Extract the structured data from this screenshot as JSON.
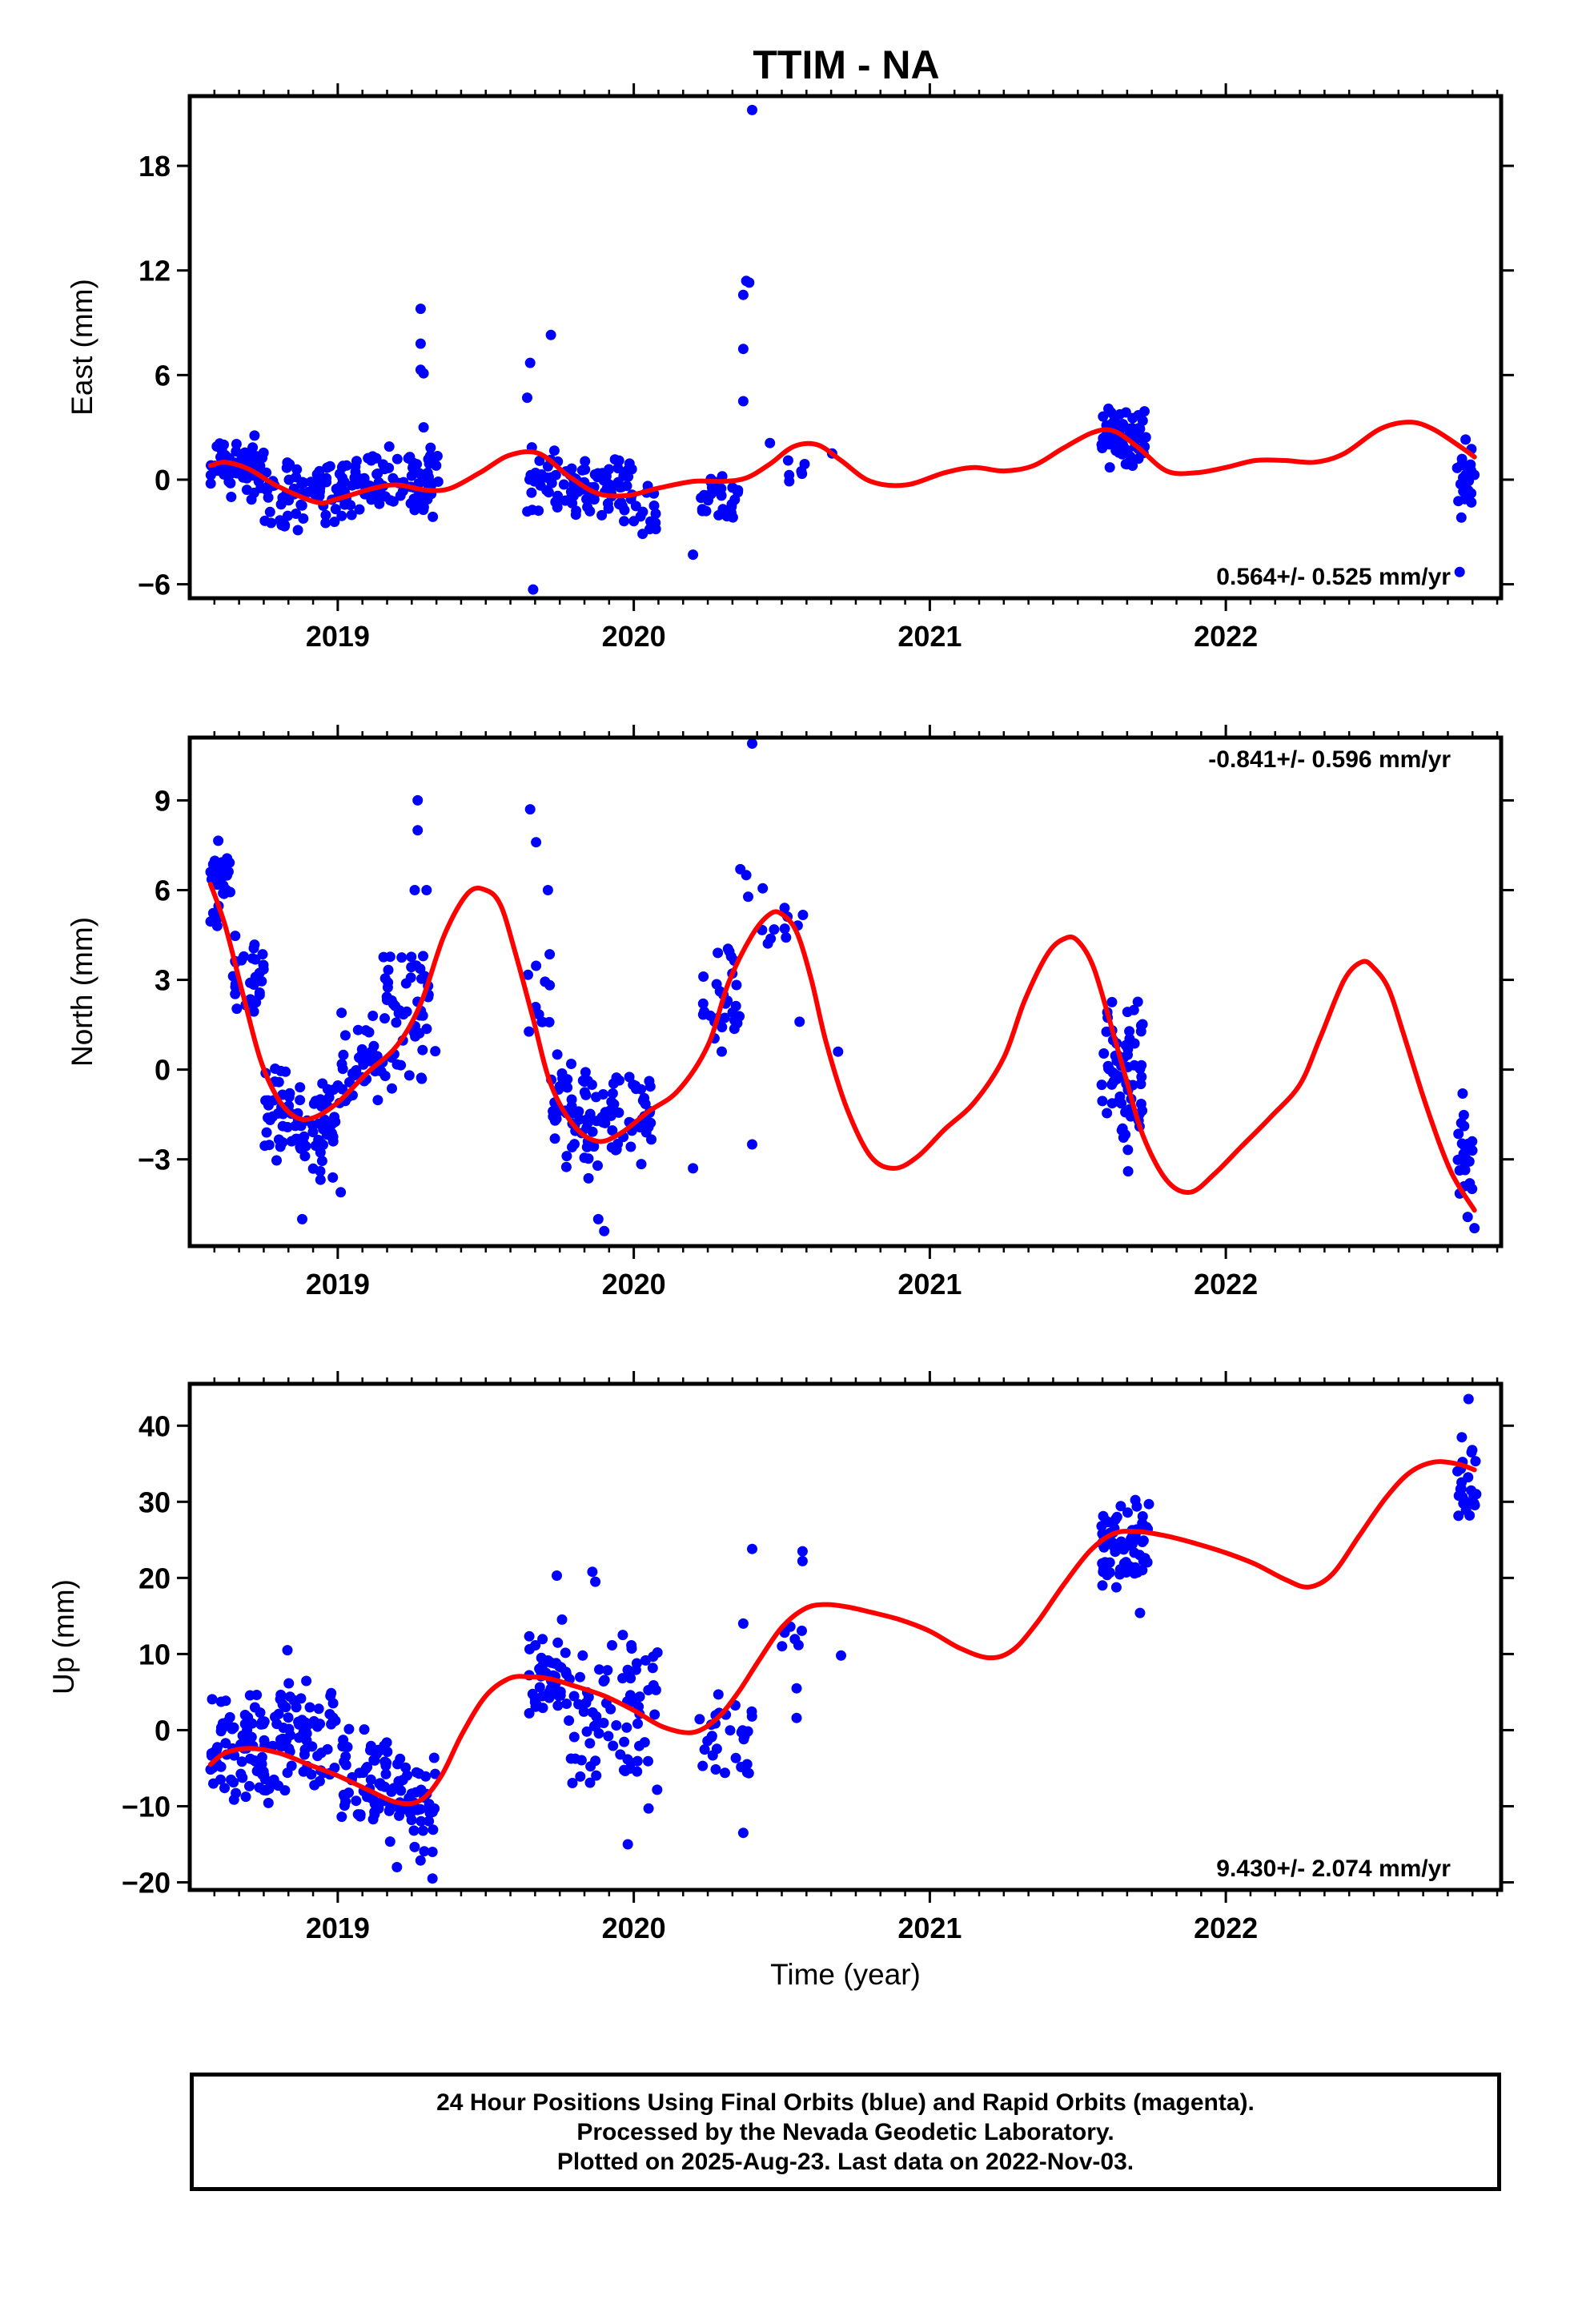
{
  "title": "TTIM - NA",
  "colors": {
    "final_orbits": "#0000ff",
    "model_fit": "#ff0000",
    "axes": "#000000"
  },
  "footer": {
    "line1": "24 Hour Positions Using Final Orbits (blue) and Rapid Orbits (magenta).",
    "line2": "Processed by the Nevada Geodetic Laboratory.",
    "line3": "Plotted on 2025-Aug-23. Last data on 2022-Nov-03."
  },
  "chart_data": [
    {
      "type": "scatter",
      "ylabel": "East (mm)",
      "xlabel": "",
      "rate_text": "0.564+/- 0.525 mm/yr",
      "xlim": [
        2018.5,
        2022.93
      ],
      "ylim": [
        -6.8,
        22.0
      ],
      "xticks": [
        2019,
        2020,
        2021,
        2022
      ],
      "yticks": [
        -6,
        0,
        6,
        12,
        18
      ],
      "grid": false,
      "clusters": [
        {
          "x": [
            2018.57,
            2018.75
          ],
          "y": [
            -1.5,
            3.0
          ],
          "n": 70
        },
        {
          "x": [
            2018.75,
            2019.02
          ],
          "y": [
            -3.2,
            1.8
          ],
          "n": 75
        },
        {
          "x": [
            2019.02,
            2019.34
          ],
          "y": [
            -2.5,
            2.0
          ],
          "n": 95
        },
        {
          "x": [
            2019.64,
            2019.78
          ],
          "y": [
            -2.0,
            2.5
          ],
          "n": 30
        },
        {
          "x": [
            2019.78,
            2020.0
          ],
          "y": [
            -2.5,
            1.5
          ],
          "n": 70
        },
        {
          "x": [
            2020.0,
            2020.08
          ],
          "y": [
            -3.5,
            0.2
          ],
          "n": 14
        },
        {
          "x": [
            2020.22,
            2020.36
          ],
          "y": [
            -2.8,
            0.5
          ],
          "n": 28
        },
        {
          "x": [
            2020.52,
            2020.58
          ],
          "y": [
            -0.2,
            1.5
          ],
          "n": 6
        },
        {
          "x": [
            2021.58,
            2021.73
          ],
          "y": [
            0.5,
            4.5
          ],
          "n": 75
        },
        {
          "x": [
            2022.78,
            2022.84
          ],
          "y": [
            -3.0,
            2.0
          ],
          "n": 22
        }
      ],
      "outliers": [
        {
          "x": 2019.28,
          "y": 9.8
        },
        {
          "x": 2019.28,
          "y": 7.8
        },
        {
          "x": 2019.28,
          "y": 6.3
        },
        {
          "x": 2019.29,
          "y": 6.1
        },
        {
          "x": 2019.29,
          "y": 3.0
        },
        {
          "x": 2019.65,
          "y": 6.7
        },
        {
          "x": 2019.64,
          "y": 4.7
        },
        {
          "x": 2019.72,
          "y": 8.3
        },
        {
          "x": 2019.66,
          "y": -6.3
        },
        {
          "x": 2020.38,
          "y": 11.4
        },
        {
          "x": 2020.39,
          "y": 11.3
        },
        {
          "x": 2020.37,
          "y": 10.6
        },
        {
          "x": 2020.37,
          "y": 7.5
        },
        {
          "x": 2020.37,
          "y": 4.5
        },
        {
          "x": 2020.4,
          "y": 21.2
        },
        {
          "x": 2020.2,
          "y": -4.3
        },
        {
          "x": 2020.46,
          "y": 2.1
        },
        {
          "x": 2020.67,
          "y": 1.5
        },
        {
          "x": 2022.79,
          "y": -5.3
        },
        {
          "x": 2022.81,
          "y": 2.3
        }
      ],
      "model_curve": {
        "x": [
          2018.57,
          2018.62,
          2018.7,
          2018.8,
          2018.93,
          2019.0,
          2019.12,
          2019.2,
          2019.3,
          2019.38,
          2019.48,
          2019.58,
          2019.68,
          2019.78,
          2019.88,
          2019.98,
          2020.08,
          2020.2,
          2020.3,
          2020.38,
          2020.46,
          2020.54,
          2020.62,
          2020.7,
          2020.8,
          2020.92,
          2021.05,
          2021.15,
          2021.25,
          2021.35,
          2021.45,
          2021.55,
          2021.62,
          2021.7,
          2021.8,
          2021.9,
          2022.0,
          2022.1,
          2022.2,
          2022.3,
          2022.4,
          2022.52,
          2022.62,
          2022.7,
          2022.8,
          2022.84
        ],
        "y": [
          0.8,
          1.0,
          0.6,
          -0.4,
          -1.3,
          -1.1,
          -0.5,
          -0.3,
          -0.6,
          -0.5,
          0.4,
          1.4,
          1.5,
          0.2,
          -0.8,
          -0.9,
          -0.5,
          -0.1,
          -0.1,
          0.1,
          0.9,
          1.9,
          2.0,
          1.1,
          -0.1,
          -0.3,
          0.4,
          0.7,
          0.5,
          0.8,
          1.8,
          2.7,
          2.8,
          1.9,
          0.5,
          0.4,
          0.7,
          1.1,
          1.1,
          1.0,
          1.5,
          2.9,
          3.3,
          2.9,
          1.8,
          1.3
        ]
      }
    },
    {
      "type": "scatter",
      "ylabel": "North (mm)",
      "xlabel": "",
      "rate_text": "-0.841+/- 0.596 mm/yr",
      "xlim": [
        2018.5,
        2022.93
      ],
      "ylim": [
        -5.9,
        11.1
      ],
      "xticks": [
        2019,
        2020,
        2021,
        2022
      ],
      "yticks": [
        -3,
        0,
        3,
        6,
        9
      ],
      "grid": false,
      "clusters": [
        {
          "x": [
            2018.57,
            2018.64
          ],
          "y": [
            4.6,
            8.2
          ],
          "n": 30
        },
        {
          "x": [
            2018.64,
            2018.75
          ],
          "y": [
            1.6,
            4.8
          ],
          "n": 30
        },
        {
          "x": [
            2018.75,
            2018.88
          ],
          "y": [
            -3.3,
            0.4
          ],
          "n": 45
        },
        {
          "x": [
            2018.88,
            2019.0
          ],
          "y": [
            -3.8,
            -0.2
          ],
          "n": 40
        },
        {
          "x": [
            2019.0,
            2019.15
          ],
          "y": [
            -1.6,
            2.2
          ],
          "n": 40
        },
        {
          "x": [
            2019.15,
            2019.33
          ],
          "y": [
            -0.8,
            4.4
          ],
          "n": 55
        },
        {
          "x": [
            2019.64,
            2019.72
          ],
          "y": [
            -0.2,
            4.2
          ],
          "n": 12
        },
        {
          "x": [
            2019.72,
            2019.88
          ],
          "y": [
            -3.8,
            0.6
          ],
          "n": 55
        },
        {
          "x": [
            2019.88,
            2020.06
          ],
          "y": [
            -3.6,
            0.5
          ],
          "n": 45
        },
        {
          "x": [
            2020.22,
            2020.36
          ],
          "y": [
            0.2,
            4.2
          ],
          "n": 30
        },
        {
          "x": [
            2020.38,
            2020.58
          ],
          "y": [
            3.2,
            6.3
          ],
          "n": 12
        },
        {
          "x": [
            2021.58,
            2021.72
          ],
          "y": [
            -3.0,
            2.6
          ],
          "n": 70
        },
        {
          "x": [
            2022.78,
            2022.84
          ],
          "y": [
            -5.2,
            -0.8
          ],
          "n": 22
        }
      ],
      "outliers": [
        {
          "x": 2019.27,
          "y": 9.0
        },
        {
          "x": 2019.27,
          "y": 8.0
        },
        {
          "x": 2019.26,
          "y": 6.0
        },
        {
          "x": 2019.3,
          "y": 6.0
        },
        {
          "x": 2019.65,
          "y": 8.7
        },
        {
          "x": 2019.67,
          "y": 7.6
        },
        {
          "x": 2019.71,
          "y": 6.0
        },
        {
          "x": 2020.4,
          "y": 10.9
        },
        {
          "x": 2020.36,
          "y": 6.7
        },
        {
          "x": 2020.38,
          "y": 6.5
        },
        {
          "x": 2020.4,
          "y": -2.5
        },
        {
          "x": 2020.2,
          "y": -3.3
        },
        {
          "x": 2020.56,
          "y": 1.6
        },
        {
          "x": 2020.69,
          "y": 0.6
        },
        {
          "x": 2018.88,
          "y": -5.0
        },
        {
          "x": 2019.01,
          "y": -4.1
        },
        {
          "x": 2019.9,
          "y": -5.4
        },
        {
          "x": 2019.88,
          "y": -5.0
        },
        {
          "x": 2021.67,
          "y": -3.4
        },
        {
          "x": 2022.84,
          "y": -5.3
        },
        {
          "x": 2022.8,
          "y": -0.8
        }
      ],
      "model_curve": {
        "x": [
          2018.57,
          2018.62,
          2018.68,
          2018.74,
          2018.8,
          2018.86,
          2018.92,
          2019.0,
          2019.1,
          2019.2,
          2019.28,
          2019.36,
          2019.44,
          2019.5,
          2019.55,
          2019.6,
          2019.66,
          2019.72,
          2019.8,
          2019.88,
          2019.96,
          2020.05,
          2020.15,
          2020.25,
          2020.32,
          2020.4,
          2020.46,
          2020.5,
          2020.55,
          2020.6,
          2020.65,
          2020.72,
          2020.8,
          2020.88,
          2020.96,
          2021.05,
          2021.15,
          2021.25,
          2021.32,
          2021.4,
          2021.46,
          2021.5,
          2021.55,
          2021.6,
          2021.66,
          2021.72,
          2021.8,
          2021.88,
          2021.96,
          2022.05,
          2022.15,
          2022.25,
          2022.32,
          2022.4,
          2022.46,
          2022.5,
          2022.55,
          2022.6,
          2022.68,
          2022.76,
          2022.84
        ],
        "y": [
          6.2,
          4.8,
          2.5,
          0.3,
          -1.0,
          -1.6,
          -1.6,
          -1.1,
          -0.1,
          0.8,
          2.2,
          4.5,
          5.9,
          6.0,
          5.5,
          3.9,
          1.7,
          -0.5,
          -1.9,
          -2.4,
          -2.1,
          -1.4,
          -0.7,
          0.8,
          2.9,
          4.5,
          5.2,
          5.2,
          4.6,
          3.0,
          0.9,
          -1.3,
          -2.9,
          -3.3,
          -2.9,
          -2.0,
          -1.1,
          0.4,
          2.3,
          3.9,
          4.4,
          4.3,
          3.5,
          1.9,
          -0.2,
          -2.2,
          -3.7,
          -4.1,
          -3.5,
          -2.6,
          -1.6,
          -0.5,
          1.1,
          3.0,
          3.6,
          3.4,
          2.7,
          1.2,
          -1.3,
          -3.4,
          -4.7
        ]
      }
    },
    {
      "type": "scatter",
      "ylabel": "Up (mm)",
      "xlabel": "Time (year)",
      "rate_text": "9.430+/- 2.074 mm/yr",
      "xlim": [
        2018.5,
        2022.93
      ],
      "ylim": [
        -21.0,
        45.5
      ],
      "xticks": [
        2019,
        2020,
        2021,
        2022
      ],
      "yticks": [
        -20,
        -10,
        0,
        10,
        20,
        30,
        40
      ],
      "grid": false,
      "clusters": [
        {
          "x": [
            2018.57,
            2018.8
          ],
          "y": [
            -11.0,
            6.0
          ],
          "n": 85
        },
        {
          "x": [
            2018.8,
            2019.0
          ],
          "y": [
            -9.0,
            7.5
          ],
          "n": 65
        },
        {
          "x": [
            2019.0,
            2019.17
          ],
          "y": [
            -13.0,
            1.0
          ],
          "n": 55
        },
        {
          "x": [
            2019.17,
            2019.33
          ],
          "y": [
            -18.0,
            -2.0
          ],
          "n": 55
        },
        {
          "x": [
            2019.64,
            2019.78
          ],
          "y": [
            0.0,
            15.5
          ],
          "n": 45
        },
        {
          "x": [
            2019.78,
            2020.08
          ],
          "y": [
            -9.0,
            13.5
          ],
          "n": 75
        },
        {
          "x": [
            2020.22,
            2020.4
          ],
          "y": [
            -7.0,
            6.5
          ],
          "n": 30
        },
        {
          "x": [
            2020.5,
            2020.58
          ],
          "y": [
            10.0,
            14.5
          ],
          "n": 6
        },
        {
          "x": [
            2021.58,
            2021.74
          ],
          "y": [
            17.5,
            31.5
          ],
          "n": 75
        },
        {
          "x": [
            2022.78,
            2022.85
          ],
          "y": [
            25.0,
            39.5
          ],
          "n": 22
        }
      ],
      "outliers": [
        {
          "x": 2018.83,
          "y": 10.5
        },
        {
          "x": 2019.86,
          "y": 20.8
        },
        {
          "x": 2019.87,
          "y": 19.5
        },
        {
          "x": 2019.74,
          "y": 20.3
        },
        {
          "x": 2019.98,
          "y": -15.0
        },
        {
          "x": 2020.05,
          "y": -10.3
        },
        {
          "x": 2020.08,
          "y": 10.2
        },
        {
          "x": 2019.32,
          "y": -19.5
        },
        {
          "x": 2019.32,
          "y": -16.0
        },
        {
          "x": 2019.2,
          "y": -18.0
        },
        {
          "x": 2020.37,
          "y": 14.0
        },
        {
          "x": 2020.4,
          "y": 23.8
        },
        {
          "x": 2020.37,
          "y": -13.5
        },
        {
          "x": 2020.57,
          "y": 23.5
        },
        {
          "x": 2020.57,
          "y": 22.2
        },
        {
          "x": 2020.55,
          "y": 5.5
        },
        {
          "x": 2020.55,
          "y": 1.6
        },
        {
          "x": 2020.7,
          "y": 9.8
        },
        {
          "x": 2021.71,
          "y": 15.4
        },
        {
          "x": 2022.82,
          "y": 43.5
        },
        {
          "x": 2022.83,
          "y": 36.5
        }
      ],
      "model_curve": {
        "x": [
          2018.57,
          2018.62,
          2018.7,
          2018.8,
          2018.9,
          2019.0,
          2019.1,
          2019.2,
          2019.28,
          2019.35,
          2019.42,
          2019.5,
          2019.58,
          2019.65,
          2019.72,
          2019.8,
          2019.9,
          2020.0,
          2020.1,
          2020.2,
          2020.28,
          2020.35,
          2020.42,
          2020.5,
          2020.58,
          2020.65,
          2020.72,
          2020.8,
          2020.9,
          2021.0,
          2021.1,
          2021.2,
          2021.28,
          2021.36,
          2021.45,
          2021.54,
          2021.62,
          2021.7,
          2021.8,
          2021.9,
          2022.0,
          2022.1,
          2022.2,
          2022.28,
          2022.36,
          2022.45,
          2022.54,
          2022.62,
          2022.7,
          2022.78,
          2022.84
        ],
        "y": [
          -4.5,
          -3.0,
          -2.4,
          -3.0,
          -4.5,
          -6.0,
          -7.8,
          -9.5,
          -9.2,
          -6.0,
          -0.5,
          4.5,
          6.8,
          7.0,
          6.7,
          5.8,
          4.5,
          2.6,
          0.4,
          -0.3,
          1.5,
          4.8,
          9.0,
          13.5,
          16.0,
          16.5,
          16.2,
          15.5,
          14.5,
          13.0,
          10.8,
          9.5,
          10.5,
          14.0,
          19.0,
          23.5,
          25.8,
          26.1,
          25.5,
          24.5,
          23.3,
          21.8,
          19.8,
          18.8,
          20.5,
          25.5,
          30.5,
          33.8,
          35.2,
          35.0,
          34.2
        ]
      }
    }
  ]
}
